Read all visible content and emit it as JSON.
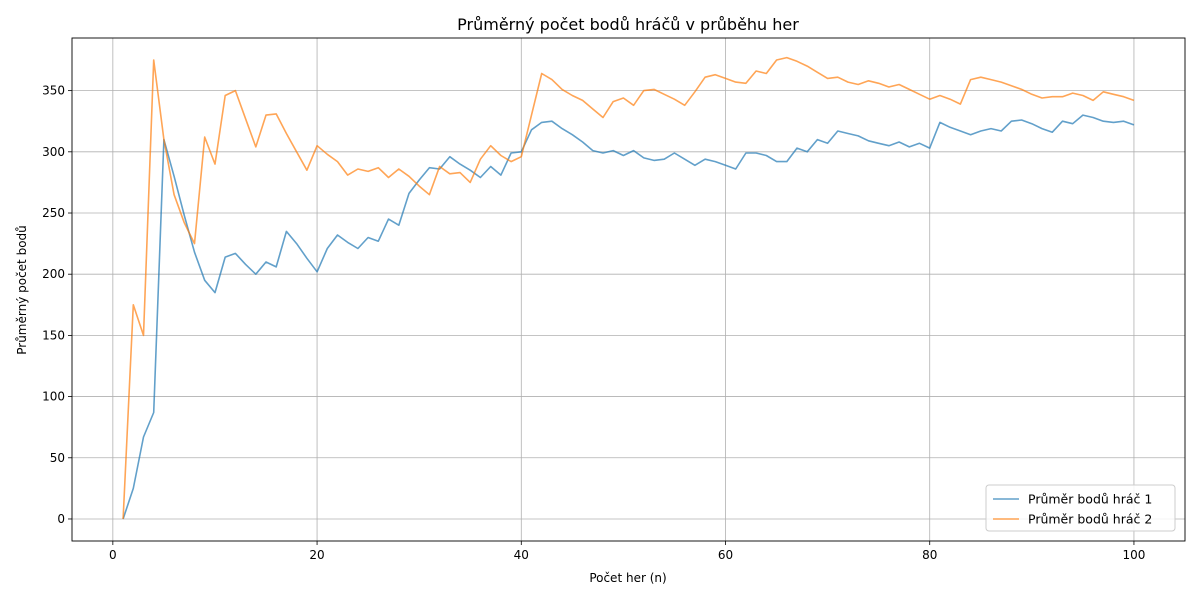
{
  "chart_data": {
    "type": "line",
    "title": "Průměrný počet bodů hráčů v průběhu her",
    "xlabel": "Počet her (n)",
    "ylabel": "Průměrný počet bodů",
    "xlim": [
      -4,
      105
    ],
    "ylim": [
      -18,
      393
    ],
    "xticks": [
      0,
      20,
      40,
      60,
      80,
      100
    ],
    "yticks": [
      0,
      50,
      100,
      150,
      200,
      250,
      300,
      350
    ],
    "grid": true,
    "legend_position": "bottom-right",
    "series": [
      {
        "name": "Průměr bodů hráč 1",
        "color": "#1f77b4",
        "x": [
          1,
          2,
          3,
          4,
          5,
          6,
          7,
          8,
          9,
          10,
          11,
          12,
          13,
          14,
          15,
          16,
          17,
          18,
          19,
          20,
          21,
          22,
          23,
          24,
          25,
          26,
          27,
          28,
          29,
          30,
          31,
          32,
          33,
          34,
          35,
          36,
          37,
          38,
          39,
          40,
          41,
          42,
          43,
          44,
          45,
          46,
          47,
          48,
          49,
          50,
          51,
          52,
          53,
          54,
          55,
          56,
          57,
          58,
          59,
          60,
          61,
          62,
          63,
          64,
          65,
          66,
          67,
          68,
          69,
          70,
          71,
          72,
          73,
          74,
          75,
          76,
          77,
          78,
          79,
          80,
          81,
          82,
          83,
          84,
          85,
          86,
          87,
          88,
          89,
          90,
          91,
          92,
          93,
          94,
          95,
          96,
          97,
          98,
          99,
          100
        ],
        "y": [
          0,
          25,
          67,
          87,
          310,
          280,
          248,
          218,
          195,
          185,
          214,
          217,
          208,
          200,
          210,
          206,
          235,
          225,
          213,
          202,
          221,
          232,
          226,
          221,
          230,
          227,
          245,
          240,
          266,
          277,
          287,
          286,
          296,
          290,
          285,
          279,
          288,
          281,
          299,
          300,
          318,
          324,
          325,
          319,
          314,
          308,
          301,
          299,
          301,
          297,
          301,
          295,
          293,
          294,
          299,
          294,
          289,
          294,
          292,
          289,
          286,
          299,
          299,
          297,
          292,
          292,
          303,
          300,
          310,
          307,
          317,
          315,
          313,
          309,
          307,
          305,
          308,
          304,
          307,
          303,
          324,
          320,
          317,
          314,
          317,
          319,
          317,
          325,
          326,
          323,
          319,
          316,
          325,
          323,
          330,
          328,
          325,
          324,
          325,
          322
        ]
      },
      {
        "name": "Průměr bodů hráč 2",
        "color": "#ff7f0e",
        "x": [
          1,
          2,
          3,
          4,
          5,
          6,
          7,
          8,
          9,
          10,
          11,
          12,
          13,
          14,
          15,
          16,
          17,
          18,
          19,
          20,
          21,
          22,
          23,
          24,
          25,
          26,
          27,
          28,
          29,
          30,
          31,
          32,
          33,
          34,
          35,
          36,
          37,
          38,
          39,
          40,
          41,
          42,
          43,
          44,
          45,
          46,
          47,
          48,
          49,
          50,
          51,
          52,
          53,
          54,
          55,
          56,
          57,
          58,
          59,
          60,
          61,
          62,
          63,
          64,
          65,
          66,
          67,
          68,
          69,
          70,
          71,
          72,
          73,
          74,
          75,
          76,
          77,
          78,
          79,
          80,
          81,
          82,
          83,
          84,
          85,
          86,
          87,
          88,
          89,
          90,
          91,
          92,
          93,
          94,
          95,
          96,
          97,
          98,
          99,
          100
        ],
        "y": [
          0,
          175,
          150,
          375,
          310,
          265,
          242,
          225,
          312,
          290,
          346,
          350,
          327,
          304,
          330,
          331,
          315,
          300,
          285,
          305,
          298,
          292,
          281,
          286,
          284,
          287,
          279,
          286,
          280,
          272,
          265,
          288,
          282,
          283,
          275,
          294,
          305,
          297,
          292,
          296,
          330,
          364,
          359,
          351,
          346,
          342,
          335,
          328,
          341,
          344,
          338,
          350,
          351,
          347,
          343,
          338,
          349,
          361,
          363,
          360,
          357,
          356,
          366,
          364,
          375,
          377,
          374,
          370,
          365,
          360,
          361,
          357,
          355,
          358,
          356,
          353,
          355,
          351,
          347,
          343,
          346,
          343,
          339,
          359,
          361,
          359,
          357,
          354,
          351,
          347,
          344,
          345,
          345,
          348,
          346,
          342,
          349,
          347,
          345,
          342
        ]
      }
    ]
  }
}
